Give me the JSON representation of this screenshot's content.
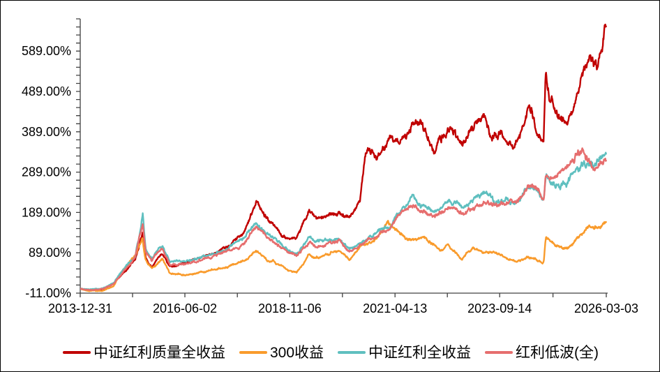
{
  "chart_data": {
    "type": "line",
    "title": "",
    "grid": false,
    "legend_position": "bottom",
    "background_color": "#FFFFFF",
    "axis_color": "#404040",
    "x_axis": {
      "type": "date",
      "start": "2013-12-31",
      "end": "2026-03-03",
      "tick_labels": [
        "2013-12-31",
        "2016-06-02",
        "2018-11-06",
        "2021-04-13",
        "2023-09-14",
        "2026-03-03"
      ],
      "minor_ticks": "midpoint-between-majors"
    },
    "y_axis": {
      "unit": "%",
      "min": -11,
      "max": 669,
      "minor_step": 20,
      "major_tick_values": [
        589,
        489,
        389,
        289,
        189,
        89,
        -11
      ],
      "tick_labels": [
        "589.00%",
        "489.00%",
        "389.00%",
        "289.00%",
        "189.00%",
        "89.00%",
        "-11.00%"
      ]
    },
    "series": [
      {
        "name": "中证红利质量全收益",
        "color": "#C00000",
        "seed": 101,
        "anchors": [
          [
            "2013-12-31",
            0
          ],
          [
            "2014-03-20",
            -4
          ],
          [
            "2014-07-10",
            -2
          ],
          [
            "2014-10-10",
            12
          ],
          [
            "2014-12-31",
            40
          ],
          [
            "2015-04-10",
            72
          ],
          [
            "2015-06-12",
            142
          ],
          [
            "2015-07-08",
            80
          ],
          [
            "2015-08-26",
            58
          ],
          [
            "2015-11-25",
            92
          ],
          [
            "2016-01-28",
            58
          ],
          [
            "2016-06-02",
            66
          ],
          [
            "2016-09-30",
            74
          ],
          [
            "2017-01-15",
            84
          ],
          [
            "2017-05-10",
            98
          ],
          [
            "2017-10-15",
            140
          ],
          [
            "2018-01-24",
            208
          ],
          [
            "2018-05-15",
            170
          ],
          [
            "2018-08-15",
            148
          ],
          [
            "2018-10-18",
            127
          ],
          [
            "2019-01-03",
            122
          ],
          [
            "2019-04-19",
            196
          ],
          [
            "2019-06-10",
            172
          ],
          [
            "2019-09-10",
            186
          ],
          [
            "2019-12-30",
            192
          ],
          [
            "2020-03-23",
            170
          ],
          [
            "2020-06-20",
            208
          ],
          [
            "2020-08-05",
            325
          ],
          [
            "2020-09-10",
            345
          ],
          [
            "2020-11-01",
            328
          ],
          [
            "2021-02-18",
            372
          ],
          [
            "2021-05-10",
            352
          ],
          [
            "2021-09-13",
            412
          ],
          [
            "2021-12-15",
            388
          ],
          [
            "2022-03-15",
            344
          ],
          [
            "2022-07-05",
            405
          ],
          [
            "2022-10-31",
            352
          ],
          [
            "2023-02-10",
            396
          ],
          [
            "2023-05-08",
            415
          ],
          [
            "2023-07-10",
            374
          ],
          [
            "2023-09-14",
            378
          ],
          [
            "2023-11-10",
            362
          ],
          [
            "2024-01-22",
            354
          ],
          [
            "2024-05-20",
            466
          ],
          [
            "2024-07-20",
            408
          ],
          [
            "2024-09-20",
            378
          ],
          [
            "2024-10-08",
            538
          ],
          [
            "2024-11-10",
            468
          ],
          [
            "2025-01-10",
            442
          ],
          [
            "2025-04-08",
            424
          ],
          [
            "2025-06-15",
            458
          ],
          [
            "2025-08-10",
            520
          ],
          [
            "2025-10-10",
            556
          ],
          [
            "2025-12-10",
            548
          ],
          [
            "2026-01-20",
            585
          ],
          [
            "2026-02-20",
            662
          ],
          [
            "2026-03-03",
            640
          ]
        ]
      },
      {
        "name": "300收益",
        "color": "#F99B2C",
        "seed": 202,
        "anchors": [
          [
            "2013-12-31",
            0
          ],
          [
            "2014-03-20",
            -7
          ],
          [
            "2014-07-10",
            -6
          ],
          [
            "2014-10-10",
            6
          ],
          [
            "2014-12-31",
            45
          ],
          [
            "2015-04-10",
            85
          ],
          [
            "2015-06-08",
            122
          ],
          [
            "2015-07-08",
            70
          ],
          [
            "2015-08-26",
            52
          ],
          [
            "2015-11-25",
            75
          ],
          [
            "2016-01-28",
            38
          ],
          [
            "2016-06-02",
            34
          ],
          [
            "2016-09-30",
            42
          ],
          [
            "2017-01-15",
            46
          ],
          [
            "2017-05-10",
            52
          ],
          [
            "2017-10-15",
            70
          ],
          [
            "2018-01-24",
            95
          ],
          [
            "2018-05-15",
            70
          ],
          [
            "2018-08-15",
            58
          ],
          [
            "2018-10-18",
            44
          ],
          [
            "2019-01-03",
            39
          ],
          [
            "2019-04-19",
            86
          ],
          [
            "2019-06-10",
            76
          ],
          [
            "2019-09-10",
            84
          ],
          [
            "2019-12-30",
            92
          ],
          [
            "2020-03-23",
            72
          ],
          [
            "2020-07-10",
            112
          ],
          [
            "2020-09-10",
            115
          ],
          [
            "2020-11-01",
            122
          ],
          [
            "2021-02-10",
            170
          ],
          [
            "2021-04-13",
            152
          ],
          [
            "2021-07-27",
            128
          ],
          [
            "2021-12-15",
            135
          ],
          [
            "2022-03-15",
            108
          ],
          [
            "2022-04-26",
            95
          ],
          [
            "2022-07-05",
            115
          ],
          [
            "2022-10-31",
            78
          ],
          [
            "2023-01-30",
            102
          ],
          [
            "2023-05-08",
            92
          ],
          [
            "2023-08-10",
            88
          ],
          [
            "2023-12-10",
            72
          ],
          [
            "2024-02-05",
            64
          ],
          [
            "2024-05-20",
            80
          ],
          [
            "2024-07-20",
            72
          ],
          [
            "2024-09-20",
            68
          ],
          [
            "2024-10-08",
            128
          ],
          [
            "2024-11-10",
            118
          ],
          [
            "2025-01-10",
            106
          ],
          [
            "2025-04-08",
            108
          ],
          [
            "2025-06-15",
            118
          ],
          [
            "2025-08-10",
            138
          ],
          [
            "2025-10-10",
            163
          ],
          [
            "2025-12-10",
            158
          ],
          [
            "2026-01-20",
            152
          ],
          [
            "2026-03-03",
            162
          ]
        ]
      },
      {
        "name": "中证红利全收益",
        "color": "#5FBFBF",
        "seed": 303,
        "anchors": [
          [
            "2013-12-31",
            0
          ],
          [
            "2014-03-20",
            -3
          ],
          [
            "2014-07-10",
            0
          ],
          [
            "2014-10-10",
            12
          ],
          [
            "2014-12-31",
            46
          ],
          [
            "2015-04-10",
            80
          ],
          [
            "2015-06-12",
            183
          ],
          [
            "2015-07-08",
            95
          ],
          [
            "2015-08-26",
            76
          ],
          [
            "2015-11-25",
            105
          ],
          [
            "2016-01-28",
            68
          ],
          [
            "2016-06-02",
            68
          ],
          [
            "2016-09-30",
            76
          ],
          [
            "2017-01-15",
            84
          ],
          [
            "2017-05-10",
            94
          ],
          [
            "2017-10-15",
            118
          ],
          [
            "2018-01-24",
            156
          ],
          [
            "2018-05-15",
            132
          ],
          [
            "2018-08-15",
            112
          ],
          [
            "2018-10-18",
            96
          ],
          [
            "2019-01-03",
            87
          ],
          [
            "2019-04-19",
            130
          ],
          [
            "2019-06-10",
            116
          ],
          [
            "2019-09-10",
            122
          ],
          [
            "2019-12-30",
            126
          ],
          [
            "2020-03-23",
            100
          ],
          [
            "2020-07-10",
            118
          ],
          [
            "2020-09-10",
            128
          ],
          [
            "2020-11-01",
            134
          ],
          [
            "2021-02-18",
            152
          ],
          [
            "2021-04-13",
            178
          ],
          [
            "2021-09-13",
            233
          ],
          [
            "2021-11-15",
            205
          ],
          [
            "2022-03-15",
            194
          ],
          [
            "2022-07-05",
            212
          ],
          [
            "2022-10-31",
            194
          ],
          [
            "2023-02-10",
            218
          ],
          [
            "2023-05-08",
            236
          ],
          [
            "2023-08-10",
            224
          ],
          [
            "2023-12-10",
            228
          ],
          [
            "2024-01-22",
            222
          ],
          [
            "2024-05-20",
            258
          ],
          [
            "2024-07-20",
            248
          ],
          [
            "2024-09-20",
            224
          ],
          [
            "2024-10-08",
            292
          ],
          [
            "2024-11-10",
            278
          ],
          [
            "2025-01-10",
            264
          ],
          [
            "2025-04-08",
            268
          ],
          [
            "2025-06-15",
            288
          ],
          [
            "2025-08-10",
            304
          ],
          [
            "2025-10-10",
            298
          ],
          [
            "2025-11-20",
            290
          ],
          [
            "2026-01-20",
            308
          ],
          [
            "2026-03-03",
            336
          ]
        ]
      },
      {
        "name": "红利低波(全)",
        "color": "#E66E6E",
        "seed": 404,
        "anchors": [
          [
            "2013-12-31",
            0
          ],
          [
            "2014-03-20",
            -4
          ],
          [
            "2014-07-10",
            -1
          ],
          [
            "2014-10-10",
            10
          ],
          [
            "2014-12-31",
            42
          ],
          [
            "2015-04-10",
            76
          ],
          [
            "2015-06-12",
            152
          ],
          [
            "2015-07-08",
            88
          ],
          [
            "2015-08-26",
            70
          ],
          [
            "2015-11-25",
            98
          ],
          [
            "2016-01-28",
            62
          ],
          [
            "2016-06-02",
            62
          ],
          [
            "2016-09-30",
            72
          ],
          [
            "2017-01-15",
            80
          ],
          [
            "2017-05-10",
            90
          ],
          [
            "2017-10-15",
            112
          ],
          [
            "2018-01-24",
            148
          ],
          [
            "2018-05-15",
            126
          ],
          [
            "2018-08-15",
            108
          ],
          [
            "2018-10-18",
            92
          ],
          [
            "2019-01-03",
            83
          ],
          [
            "2019-04-19",
            122
          ],
          [
            "2019-06-10",
            110
          ],
          [
            "2019-09-10",
            116
          ],
          [
            "2019-12-30",
            120
          ],
          [
            "2020-03-23",
            96
          ],
          [
            "2020-07-10",
            112
          ],
          [
            "2020-09-10",
            122
          ],
          [
            "2020-11-01",
            128
          ],
          [
            "2021-02-18",
            144
          ],
          [
            "2021-04-13",
            166
          ],
          [
            "2021-09-13",
            214
          ],
          [
            "2021-11-15",
            192
          ],
          [
            "2022-03-15",
            182
          ],
          [
            "2022-07-05",
            198
          ],
          [
            "2022-10-31",
            182
          ],
          [
            "2023-02-10",
            198
          ],
          [
            "2023-05-08",
            218
          ],
          [
            "2023-08-10",
            212
          ],
          [
            "2023-12-10",
            216
          ],
          [
            "2024-01-22",
            212
          ],
          [
            "2024-05-20",
            252
          ],
          [
            "2024-07-20",
            246
          ],
          [
            "2024-09-20",
            222
          ],
          [
            "2024-10-08",
            286
          ],
          [
            "2024-11-10",
            276
          ],
          [
            "2025-01-10",
            278
          ],
          [
            "2025-04-08",
            286
          ],
          [
            "2025-06-15",
            308
          ],
          [
            "2025-08-10",
            330
          ],
          [
            "2025-10-10",
            316
          ],
          [
            "2025-11-20",
            298
          ],
          [
            "2026-01-20",
            316
          ],
          [
            "2026-03-03",
            326
          ]
        ]
      }
    ],
    "noise": {
      "step_days": 3,
      "phi_fast": 0.45,
      "sigma_fast": 1.0,
      "amp_fast_base": 0.6,
      "amp_fast_per_value": 0.012,
      "fast_weight": 0.9,
      "phi_slow": 0.975,
      "sigma_slow": 0.55,
      "amp_slow_base": 0.5,
      "amp_slow_per_value": 0.016,
      "slow_weight": 1.2
    }
  }
}
